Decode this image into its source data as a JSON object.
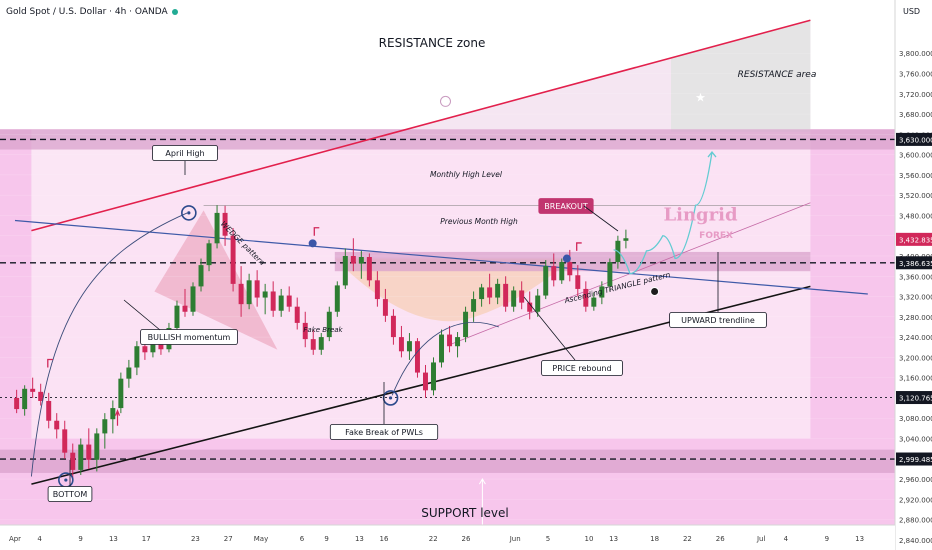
{
  "header": {
    "title": "Gold Spot / U.S. Dollar · 4h · OANDA",
    "currency": "USD"
  },
  "colors": {
    "pink_bg": "#f7c6ec",
    "band": "#d9a2cc",
    "up_candle": "#2e7d32",
    "down_candle": "#d1285a",
    "resistance_line": "#e2204c",
    "trendline": "#141414",
    "blue_line": "#3f5aa8",
    "teal_projection": "#62cbd2",
    "badge_bg": "#c1356f"
  },
  "chart_data": {
    "type": "candlestick",
    "symbol": "Gold Spot / U.S. Dollar",
    "interval": "4h",
    "source": "OANDA",
    "y_axis": {
      "ylim": [
        2820,
        3905
      ],
      "ticks": [
        2840,
        2880,
        2920,
        2960,
        3000,
        3040,
        3080,
        3120,
        3160,
        3200,
        3240,
        3280,
        3320,
        3360,
        3400,
        3440,
        3480,
        3520,
        3560,
        3600,
        3640,
        3680,
        3720,
        3760,
        3800
      ],
      "tick_labels": [
        "2,840.000",
        "2,880.000",
        "2,920.000",
        "2,960.000",
        "3,000.000",
        "3,040.000",
        "3,080.000",
        "3,120.000",
        "3,160.000",
        "3,200.000",
        "3,240.000",
        "3,280.000",
        "3,320.000",
        "3,360.000",
        "3,400.000",
        "3,440.000",
        "3,480.000",
        "3,520.000",
        "3,560.000",
        "3,600.000",
        "3,640.000",
        "3,680.000",
        "3,720.000",
        "3,760.000",
        "3,800.000"
      ]
    },
    "x_axis": {
      "labels": [
        {
          "text": "Apr",
          "day": 1
        },
        {
          "text": "4",
          "day": 4
        },
        {
          "text": "9",
          "day": 9
        },
        {
          "text": "13",
          "day": 13
        },
        {
          "text": "17",
          "day": 17
        },
        {
          "text": "23",
          "day": 23
        },
        {
          "text": "27",
          "day": 27
        },
        {
          "text": "May",
          "day": 31
        },
        {
          "text": "6",
          "day": 36
        },
        {
          "text": "9",
          "day": 39
        },
        {
          "text": "13",
          "day": 43
        },
        {
          "text": "16",
          "day": 46
        },
        {
          "text": "22",
          "day": 52
        },
        {
          "text": "26",
          "day": 56
        },
        {
          "text": "Jun",
          "day": 62
        },
        {
          "text": "5",
          "day": 66
        },
        {
          "text": "10",
          "day": 71
        },
        {
          "text": "13",
          "day": 74
        },
        {
          "text": "18",
          "day": 79
        },
        {
          "text": "22",
          "day": 83
        },
        {
          "text": "26",
          "day": 87
        },
        {
          "text": "Jul",
          "day": 92
        },
        {
          "text": "4",
          "day": 95
        },
        {
          "text": "9",
          "day": 100
        },
        {
          "text": "13",
          "day": 104
        }
      ]
    },
    "price_labels": [
      {
        "value": 3630,
        "text": "3,630.000",
        "style": "dark"
      },
      {
        "value": 3432.835,
        "text": "3,432.835",
        "style": "red"
      },
      {
        "value": 3386.635,
        "text": "3,386.635",
        "style": "dark"
      },
      {
        "value": 3120.765,
        "text": "3,120.765",
        "style": "dark"
      },
      {
        "value": 2999.485,
        "text": "2,999.485",
        "style": "dark"
      }
    ],
    "horizontal_levels": [
      {
        "value": 3630,
        "style": "dashed"
      },
      {
        "value": 3386.635,
        "style": "dashed"
      },
      {
        "value": 3120.765,
        "style": "dotted"
      },
      {
        "value": 2999.485,
        "style": "dashed"
      },
      {
        "value": 3500,
        "style": "thin"
      }
    ],
    "zones": [
      {
        "name": "RESISTANCE area",
        "from": 3610,
        "to": 3650
      },
      {
        "name": "Previous Month High",
        "from": 3370,
        "to": 3408
      },
      {
        "name": "SUPPORT level",
        "from": 2972,
        "to": 3018
      }
    ],
    "trendlines": [
      {
        "name": "resistance",
        "points": [
          {
            "day": 3,
            "value": 3450
          },
          {
            "day": 98,
            "value": 3865
          }
        ]
      },
      {
        "name": "upward",
        "points": [
          {
            "day": 3,
            "value": 2950
          },
          {
            "day": 98,
            "value": 3340
          }
        ]
      },
      {
        "name": "previous-month-high",
        "points": [
          {
            "day": 1,
            "value": 3470
          },
          {
            "day": 105,
            "value": 3325
          }
        ]
      },
      {
        "name": "ascending-triangle",
        "points": [
          {
            "day": 54,
            "value": 3225
          },
          {
            "day": 98,
            "value": 3505
          }
        ]
      }
    ],
    "projection": [
      {
        "day": 74,
        "value": 3412
      },
      {
        "day": 76,
        "value": 3365
      },
      {
        "day": 78,
        "value": 3410
      },
      {
        "day": 80,
        "value": 3440
      },
      {
        "day": 81.5,
        "value": 3395
      },
      {
        "day": 84,
        "value": 3500
      },
      {
        "day": 86,
        "value": 3605
      }
    ],
    "candles": [
      {
        "o": 3120,
        "h": 3136,
        "l": 3090,
        "c": 3098
      },
      {
        "o": 3098,
        "h": 3145,
        "l": 3085,
        "c": 3138
      },
      {
        "o": 3138,
        "h": 3160,
        "l": 3120,
        "c": 3132
      },
      {
        "o": 3132,
        "h": 3148,
        "l": 3105,
        "c": 3114
      },
      {
        "o": 3114,
        "h": 3130,
        "l": 3060,
        "c": 3075
      },
      {
        "o": 3075,
        "h": 3090,
        "l": 3040,
        "c": 3058
      },
      {
        "o": 3058,
        "h": 3075,
        "l": 3000,
        "c": 3012
      },
      {
        "o": 3012,
        "h": 3030,
        "l": 2960,
        "c": 2978
      },
      {
        "o": 2978,
        "h": 3040,
        "l": 2968,
        "c": 3028
      },
      {
        "o": 3028,
        "h": 3060,
        "l": 2980,
        "c": 2998
      },
      {
        "o": 2998,
        "h": 3060,
        "l": 2975,
        "c": 3050
      },
      {
        "o": 3050,
        "h": 3090,
        "l": 3020,
        "c": 3078
      },
      {
        "o": 3078,
        "h": 3115,
        "l": 3050,
        "c": 3100
      },
      {
        "o": 3100,
        "h": 3170,
        "l": 3090,
        "c": 3158
      },
      {
        "o": 3158,
        "h": 3195,
        "l": 3140,
        "c": 3180
      },
      {
        "o": 3180,
        "h": 3232,
        "l": 3165,
        "c": 3222
      },
      {
        "o": 3222,
        "h": 3245,
        "l": 3195,
        "c": 3210
      },
      {
        "o": 3210,
        "h": 3238,
        "l": 3200,
        "c": 3226
      },
      {
        "o": 3226,
        "h": 3240,
        "l": 3205,
        "c": 3216
      },
      {
        "o": 3216,
        "h": 3268,
        "l": 3210,
        "c": 3258
      },
      {
        "o": 3258,
        "h": 3312,
        "l": 3245,
        "c": 3302
      },
      {
        "o": 3302,
        "h": 3335,
        "l": 3280,
        "c": 3290
      },
      {
        "o": 3290,
        "h": 3348,
        "l": 3282,
        "c": 3340
      },
      {
        "o": 3340,
        "h": 3395,
        "l": 3330,
        "c": 3382
      },
      {
        "o": 3382,
        "h": 3432,
        "l": 3370,
        "c": 3425
      },
      {
        "o": 3425,
        "h": 3500,
        "l": 3415,
        "c": 3485
      },
      {
        "o": 3485,
        "h": 3499,
        "l": 3420,
        "c": 3440
      },
      {
        "o": 3440,
        "h": 3455,
        "l": 3330,
        "c": 3345
      },
      {
        "o": 3345,
        "h": 3380,
        "l": 3280,
        "c": 3305
      },
      {
        "o": 3305,
        "h": 3365,
        "l": 3295,
        "c": 3352
      },
      {
        "o": 3352,
        "h": 3372,
        "l": 3300,
        "c": 3318
      },
      {
        "o": 3318,
        "h": 3345,
        "l": 3285,
        "c": 3330
      },
      {
        "o": 3330,
        "h": 3350,
        "l": 3280,
        "c": 3292
      },
      {
        "o": 3292,
        "h": 3335,
        "l": 3280,
        "c": 3322
      },
      {
        "o": 3322,
        "h": 3340,
        "l": 3290,
        "c": 3300
      },
      {
        "o": 3300,
        "h": 3318,
        "l": 3255,
        "c": 3268
      },
      {
        "o": 3268,
        "h": 3290,
        "l": 3220,
        "c": 3236
      },
      {
        "o": 3236,
        "h": 3255,
        "l": 3205,
        "c": 3215
      },
      {
        "o": 3215,
        "h": 3248,
        "l": 3205,
        "c": 3240
      },
      {
        "o": 3240,
        "h": 3300,
        "l": 3232,
        "c": 3290
      },
      {
        "o": 3290,
        "h": 3350,
        "l": 3280,
        "c": 3342
      },
      {
        "o": 3342,
        "h": 3415,
        "l": 3335,
        "c": 3400
      },
      {
        "o": 3400,
        "h": 3435,
        "l": 3370,
        "c": 3385
      },
      {
        "o": 3385,
        "h": 3410,
        "l": 3355,
        "c": 3398
      },
      {
        "o": 3398,
        "h": 3405,
        "l": 3340,
        "c": 3352
      },
      {
        "o": 3352,
        "h": 3370,
        "l": 3300,
        "c": 3315
      },
      {
        "o": 3315,
        "h": 3335,
        "l": 3270,
        "c": 3282
      },
      {
        "o": 3282,
        "h": 3295,
        "l": 3225,
        "c": 3240
      },
      {
        "o": 3240,
        "h": 3262,
        "l": 3200,
        "c": 3212
      },
      {
        "o": 3212,
        "h": 3248,
        "l": 3195,
        "c": 3232
      },
      {
        "o": 3232,
        "h": 3238,
        "l": 3160,
        "c": 3170
      },
      {
        "o": 3170,
        "h": 3185,
        "l": 3120,
        "c": 3135
      },
      {
        "o": 3135,
        "h": 3200,
        "l": 3125,
        "c": 3190
      },
      {
        "o": 3190,
        "h": 3255,
        "l": 3180,
        "c": 3245
      },
      {
        "o": 3245,
        "h": 3262,
        "l": 3210,
        "c": 3222
      },
      {
        "o": 3222,
        "h": 3250,
        "l": 3200,
        "c": 3240
      },
      {
        "o": 3240,
        "h": 3300,
        "l": 3230,
        "c": 3290
      },
      {
        "o": 3290,
        "h": 3330,
        "l": 3270,
        "c": 3315
      },
      {
        "o": 3315,
        "h": 3345,
        "l": 3300,
        "c": 3338
      },
      {
        "o": 3338,
        "h": 3365,
        "l": 3305,
        "c": 3318
      },
      {
        "o": 3318,
        "h": 3355,
        "l": 3305,
        "c": 3345
      },
      {
        "o": 3345,
        "h": 3360,
        "l": 3290,
        "c": 3300
      },
      {
        "o": 3300,
        "h": 3340,
        "l": 3290,
        "c": 3332
      },
      {
        "o": 3332,
        "h": 3350,
        "l": 3295,
        "c": 3308
      },
      {
        "o": 3308,
        "h": 3330,
        "l": 3275,
        "c": 3290
      },
      {
        "o": 3290,
        "h": 3335,
        "l": 3280,
        "c": 3322
      },
      {
        "o": 3322,
        "h": 3392,
        "l": 3315,
        "c": 3380
      },
      {
        "o": 3380,
        "h": 3405,
        "l": 3340,
        "c": 3352
      },
      {
        "o": 3352,
        "h": 3395,
        "l": 3345,
        "c": 3388
      },
      {
        "o": 3388,
        "h": 3412,
        "l": 3350,
        "c": 3362
      },
      {
        "o": 3362,
        "h": 3382,
        "l": 3320,
        "c": 3335
      },
      {
        "o": 3335,
        "h": 3350,
        "l": 3290,
        "c": 3300
      },
      {
        "o": 3300,
        "h": 3328,
        "l": 3292,
        "c": 3318
      },
      {
        "o": 3318,
        "h": 3350,
        "l": 3305,
        "c": 3340
      },
      {
        "o": 3340,
        "h": 3395,
        "l": 3330,
        "c": 3388
      },
      {
        "o": 3388,
        "h": 3440,
        "l": 3375,
        "c": 3430
      },
      {
        "o": 3430,
        "h": 3452,
        "l": 3415,
        "c": 3435
      }
    ]
  },
  "annotations": {
    "resistance_zone": "RESISTANCE zone",
    "resistance_area": "RESISTANCE area",
    "april_high": "April High",
    "monthly_high": "Monthly High Level",
    "previous_month_high": "Previous Month High",
    "breakout": "BREAKOUT",
    "wedge_pattern": "WEDGE pattern",
    "bullish_momentum": "BULLISH momentum",
    "fake_break": "Fake Break",
    "ascending_triangle": "Ascending TRIANGLE pattern",
    "upward_trendline": "UPWARD trendline",
    "price_rebound": "PRICE rebound",
    "fake_break_pwls": "Fake Break of PWLs",
    "bottom": "BOTTOM",
    "support_level": "SUPPORT level",
    "watermark_brand": "Lingrid",
    "watermark_sub": "FOREX"
  }
}
